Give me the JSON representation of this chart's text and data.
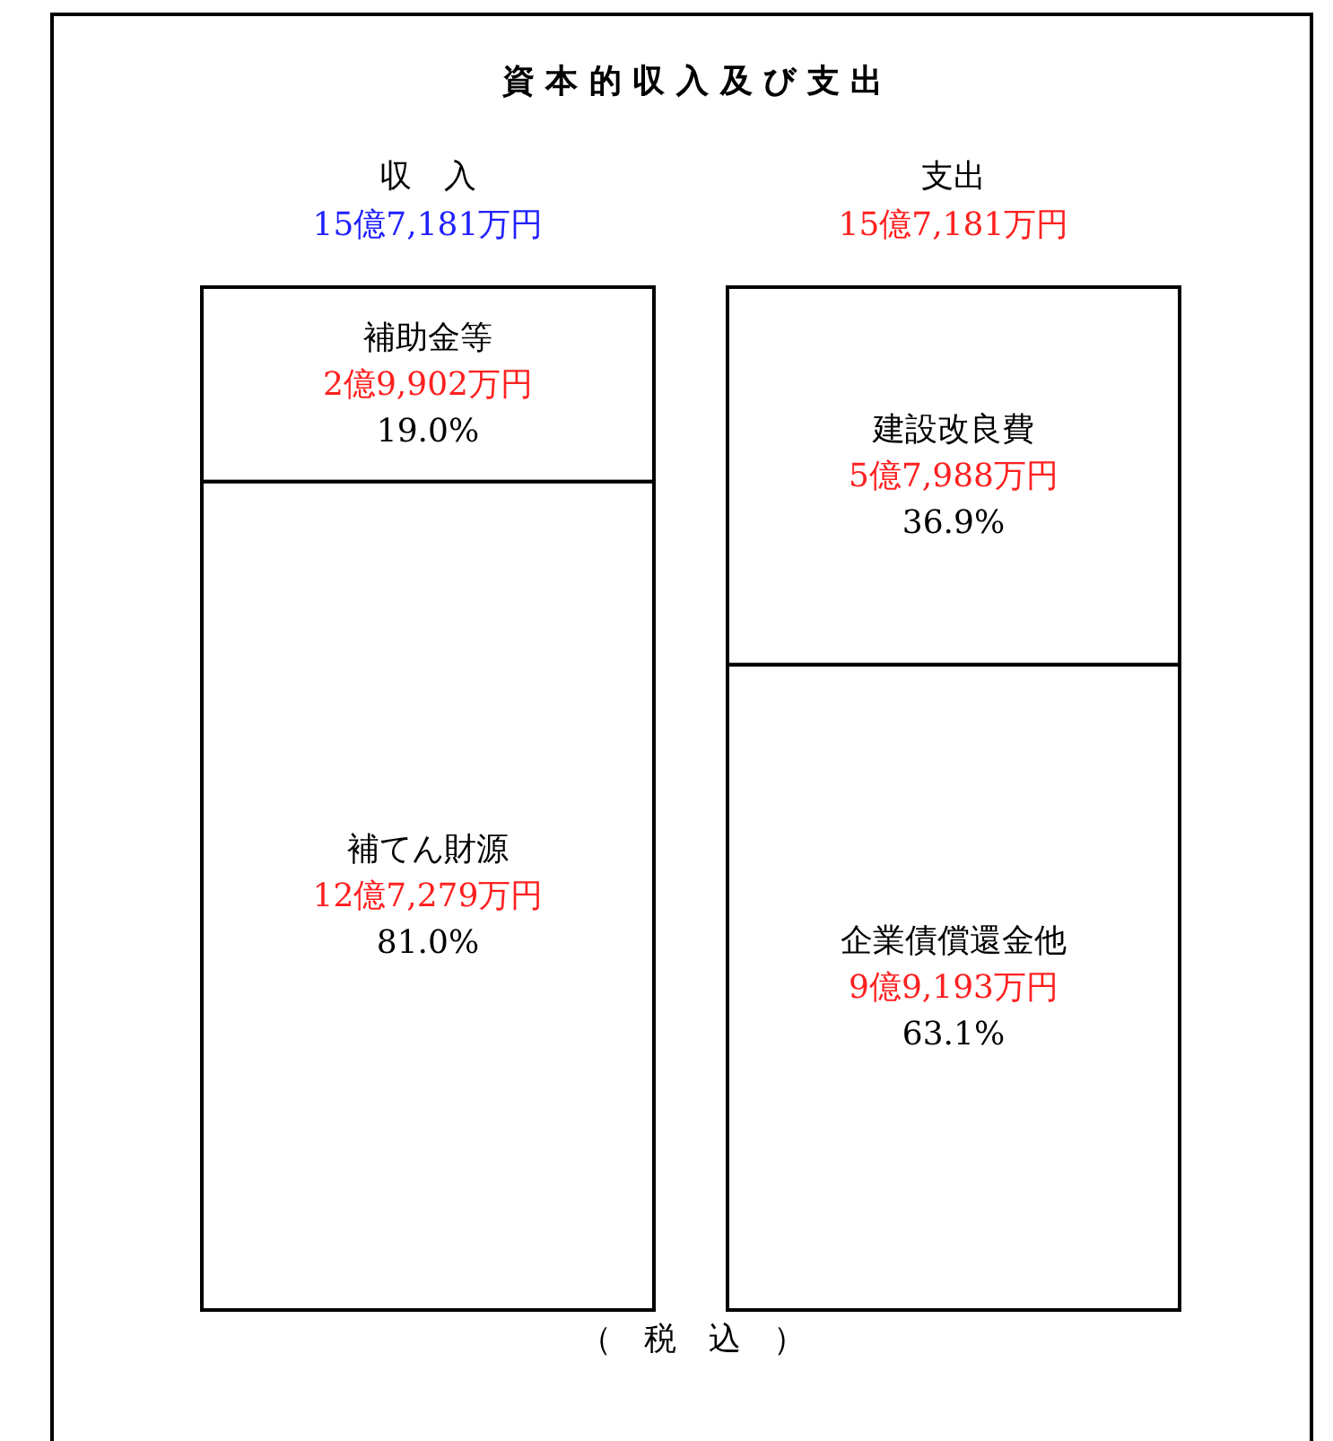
{
  "chart_data": {
    "type": "bar",
    "title": "資 本 的 収 入 及 び 支 出",
    "stacked": true,
    "categories": [
      "収　入",
      "支出"
    ],
    "totals": [
      "15億7,181万円",
      "15億7,181万円"
    ],
    "series": [
      {
        "color": "#ffffff",
        "values": [
          81.0,
          63.1
        ],
        "value_labels": [
          "補てん財源\n12億7,279万円\n81.0%",
          "企業債償還金他\n9億9,193万円\n63.1%"
        ]
      },
      {
        "color": "#ffffff",
        "values": [
          19.0,
          36.9
        ],
        "value_labels": [
          "補助金等\n2億9,902万円\n19.0%",
          "建設改良費\n5億7,988万円\n36.9%"
        ]
      }
    ],
    "annotations": [
      "（　税　込　）"
    ]
  }
}
